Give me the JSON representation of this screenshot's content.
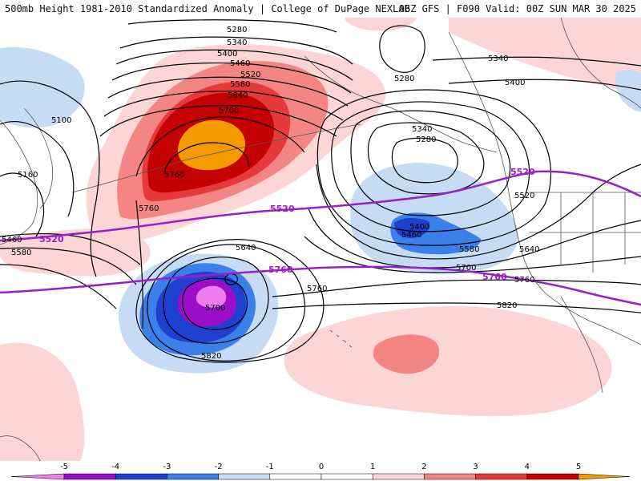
{
  "header": {
    "title_left": "500mb Height 1981-2010 Standardized Anomaly | College of DuPage NEXLAB",
    "title_right": "06Z GFS | F090 Valid: 00Z SUN MAR 30 2025"
  },
  "colors": {
    "neg5": "#f07df0",
    "neg4": "#9b0fc8",
    "neg3": "#1f3fd0",
    "neg2": "#3a7fea",
    "neg1": "#c6dcf5",
    "zero": "#ffffff",
    "pos1": "#fcd5d5",
    "pos2": "#f38585",
    "pos3": "#e63a3a",
    "pos4": "#c40000",
    "pos5": "#f59a00",
    "contour": "#000000",
    "purple_contour": "#9a1fc8",
    "coast": "#555555"
  },
  "contour_labels": {
    "c5280_top": "5280",
    "c5340_top": "5340",
    "c5400_top": "5400",
    "c5460_top": "5460",
    "c5520_top": "5520",
    "c5580_top": "5580",
    "c5640_top": "5640",
    "c5700_ridge": "5700",
    "c5760_ridge": "5760",
    "c5760_left": "5760",
    "c5100": "5100",
    "c5160": "5160",
    "c5460_left": "5460",
    "c5580_left": "5580",
    "c5280_low_n": "5280",
    "c5340_east": "5340",
    "c5400_east": "5400",
    "c5340_low": "5340",
    "c5280_low": "5280",
    "c5400_low": "5400",
    "c5460_low": "5460",
    "c5520_low": "5520",
    "c5580_low": "5580",
    "c5640_low": "5640",
    "c5700_low": "5700",
    "c5760_low": "5760",
    "c5820_east": "5820",
    "c5640_cut": "5640",
    "c5700_cut": "5700",
    "c5760_cut": "5760",
    "c5820_cut": "5820",
    "p5520_left": "5520",
    "p5520_mid": "5520",
    "p5520_right": "5520",
    "p5760_mid": "5760",
    "p5760_right": "5760"
  },
  "legend": {
    "ticks": [
      "-5",
      "-4",
      "-3",
      "-2",
      "-1",
      "0",
      "1",
      "2",
      "3",
      "4",
      "5"
    ]
  }
}
